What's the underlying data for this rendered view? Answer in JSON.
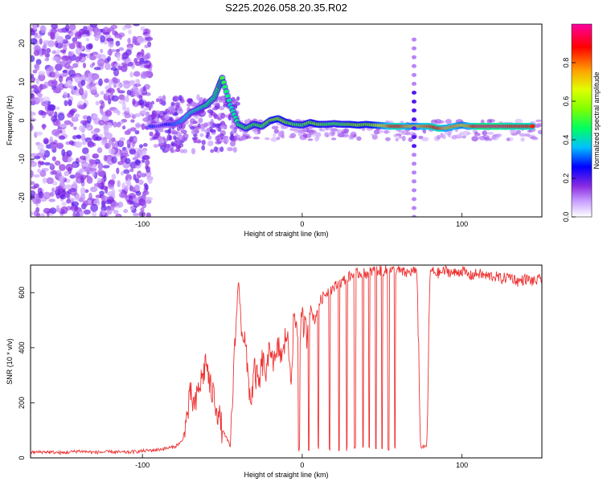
{
  "title": "S225.2026.058.20.35.R02",
  "chart_data": [
    {
      "type": "heatmap",
      "xlabel": "Height of straight line (km)",
      "ylabel": "Frequency (Hz)",
      "xlim": [
        -170,
        150
      ],
      "ylim": [
        -25,
        25
      ],
      "xticks": [
        -100,
        0,
        100
      ],
      "yticks": [
        -20,
        -10,
        0,
        10,
        20
      ],
      "colorbar": {
        "label": "Normalized spectral amplitude",
        "range": [
          0,
          1
        ],
        "ticks": [
          0.0,
          0.2,
          0.4,
          0.6,
          0.8
        ],
        "colors": [
          "#ffffff",
          "#8a2be2",
          "#0000ff",
          "#00c0ff",
          "#00ff00",
          "#c8ff00",
          "#ffff00",
          "#ff8000",
          "#ff0000",
          "#ff00a0"
        ]
      },
      "ridge": [
        {
          "x": -95,
          "f": -1.5,
          "a": 0.3
        },
        {
          "x": -90,
          "f": -1.5,
          "a": 0.2
        },
        {
          "x": -85,
          "f": -1.0,
          "a": 0.25
        },
        {
          "x": -80,
          "f": -1.0,
          "a": 0.3
        },
        {
          "x": -75,
          "f": 0.0,
          "a": 0.35
        },
        {
          "x": -70,
          "f": 2.0,
          "a": 0.4
        },
        {
          "x": -65,
          "f": 3.0,
          "a": 0.4
        },
        {
          "x": -60,
          "f": 4.0,
          "a": 0.45
        },
        {
          "x": -55,
          "f": 6.0,
          "a": 0.45
        },
        {
          "x": -52,
          "f": 9.0,
          "a": 0.5
        },
        {
          "x": -50,
          "f": 11.0,
          "a": 0.5
        },
        {
          "x": -45,
          "f": 4.0,
          "a": 0.4
        },
        {
          "x": -40,
          "f": -1.0,
          "a": 0.45
        },
        {
          "x": -35,
          "f": -2.0,
          "a": 0.5
        },
        {
          "x": -30,
          "f": -1.0,
          "a": 0.5
        },
        {
          "x": -25,
          "f": -1.5,
          "a": 0.5
        },
        {
          "x": -20,
          "f": 0.0,
          "a": 0.55
        },
        {
          "x": -15,
          "f": 0.5,
          "a": 0.6
        },
        {
          "x": -10,
          "f": -0.5,
          "a": 0.55
        },
        {
          "x": -5,
          "f": -1.0,
          "a": 0.5
        },
        {
          "x": 0,
          "f": -1.2,
          "a": 0.5
        },
        {
          "x": 5,
          "f": -0.5,
          "a": 0.55
        },
        {
          "x": 10,
          "f": -1.0,
          "a": 0.55
        },
        {
          "x": 15,
          "f": -1.0,
          "a": 0.5
        },
        {
          "x": 20,
          "f": -0.8,
          "a": 0.5
        },
        {
          "x": 25,
          "f": -1.0,
          "a": 0.5
        },
        {
          "x": 30,
          "f": -1.0,
          "a": 0.55
        },
        {
          "x": 35,
          "f": -1.2,
          "a": 0.6
        },
        {
          "x": 40,
          "f": -1.0,
          "a": 0.55
        },
        {
          "x": 45,
          "f": -1.2,
          "a": 0.6
        },
        {
          "x": 50,
          "f": -1.3,
          "a": 0.7
        },
        {
          "x": 55,
          "f": -1.5,
          "a": 0.85
        },
        {
          "x": 60,
          "f": -1.5,
          "a": 0.9
        },
        {
          "x": 65,
          "f": -1.5,
          "a": 0.8
        },
        {
          "x": 70,
          "f": -1.5,
          "a": 0.7
        },
        {
          "x": 75,
          "f": -1.5,
          "a": 0.8
        },
        {
          "x": 80,
          "f": -1.5,
          "a": 0.85
        },
        {
          "x": 85,
          "f": -2.0,
          "a": 0.9
        },
        {
          "x": 90,
          "f": -2.0,
          "a": 0.75
        },
        {
          "x": 95,
          "f": -1.5,
          "a": 0.8
        },
        {
          "x": 100,
          "f": -1.2,
          "a": 0.7
        },
        {
          "x": 105,
          "f": -1.5,
          "a": 0.8
        },
        {
          "x": 110,
          "f": -1.5,
          "a": 0.95
        },
        {
          "x": 115,
          "f": -1.5,
          "a": 0.95
        },
        {
          "x": 120,
          "f": -1.5,
          "a": 0.95
        },
        {
          "x": 125,
          "f": -1.5,
          "a": 0.95
        },
        {
          "x": 130,
          "f": -1.5,
          "a": 0.9
        },
        {
          "x": 135,
          "f": -1.5,
          "a": 0.9
        },
        {
          "x": 140,
          "f": -1.5,
          "a": 0.9
        },
        {
          "x": 145,
          "f": -1.5,
          "a": 0.85
        }
      ],
      "vertical_stripe": {
        "x": 70,
        "f_from": -25,
        "f_to": 22
      }
    },
    {
      "type": "line",
      "xlabel": "Height of straight line (km)",
      "ylabel": "SNR (10 * v/v)",
      "xlim": [
        -170,
        150
      ],
      "ylim": [
        0,
        700
      ],
      "xticks": [
        -100,
        0,
        100
      ],
      "yticks": [
        0,
        200,
        400,
        600
      ],
      "series": [
        {
          "color": "#ee3333",
          "x": [
            -170,
            -160,
            -150,
            -140,
            -130,
            -120,
            -110,
            -100,
            -90,
            -80,
            -75,
            -72,
            -70,
            -67,
            -65,
            -62,
            -60,
            -58,
            -55,
            -52,
            -50,
            -48,
            -45,
            -43,
            -40,
            -38,
            -36,
            -34,
            -32,
            -30,
            -27,
            -25,
            -22,
            -20,
            -17,
            -15,
            -12,
            -10,
            -7,
            -5,
            -2,
            0,
            3,
            5,
            8,
            10,
            15,
            20,
            25,
            30,
            35,
            40,
            45,
            50,
            55,
            60,
            65,
            70,
            72,
            74,
            76,
            78,
            80,
            85,
            90,
            95,
            100,
            105,
            110,
            115,
            120,
            125,
            130,
            135,
            140,
            145,
            150
          ],
          "values": [
            20,
            22,
            18,
            25,
            20,
            22,
            20,
            25,
            30,
            40,
            60,
            150,
            230,
            180,
            250,
            300,
            360,
            260,
            220,
            150,
            100,
            80,
            40,
            300,
            650,
            480,
            430,
            300,
            200,
            320,
            260,
            350,
            300,
            420,
            330,
            400,
            360,
            470,
            300,
            520,
            420,
            500,
            450,
            540,
            500,
            560,
            600,
            620,
            640,
            660,
            670,
            670,
            680,
            680,
            680,
            680,
            670,
            680,
            660,
            40,
            40,
            40,
            680,
            670,
            680,
            670,
            680,
            660,
            670,
            660,
            660,
            650,
            660,
            640,
            650,
            640,
            650
          ]
        }
      ],
      "dropouts": [
        -2,
        4,
        10,
        17,
        23,
        28,
        33,
        38,
        42,
        46,
        50,
        54,
        58
      ]
    }
  ]
}
